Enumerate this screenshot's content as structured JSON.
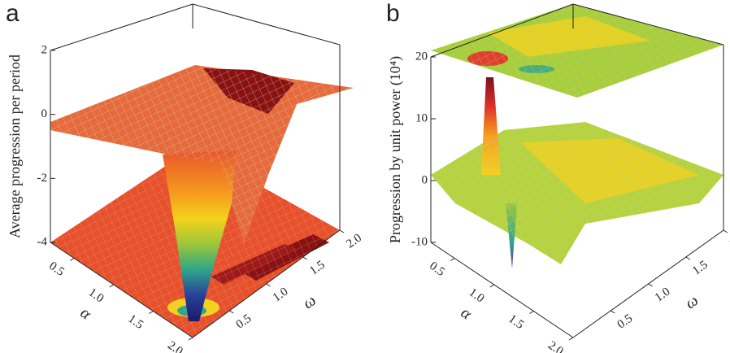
{
  "chart_data": [
    {
      "type": "surface3d",
      "panel_label": "a",
      "zlabel": "Average progression per period",
      "xlabel": "α",
      "ylabel": "ω",
      "zlim": [
        -4,
        2
      ],
      "zticks": [
        2,
        0,
        -2,
        -4
      ],
      "xlim": [
        0.2,
        2
      ],
      "xticks": [
        0.5,
        {
          "value": 1,
          "label": "1.0"
        },
        1.5,
        {
          "value": 2,
          "label": "2.0"
        }
      ],
      "ylim": [
        0,
        2
      ],
      "yticks": [
        0.5,
        {
          "value": 1,
          "label": "1.0"
        },
        1.5,
        {
          "value": 2,
          "label": "2.0"
        }
      ]
    },
    {
      "type": "surface3d",
      "panel_label": "b",
      "zlabel": "Progression by unit power (10⁴)",
      "xlabel": "α",
      "ylabel": "ω",
      "zlim": [
        -10,
        20
      ],
      "zticks": [
        20,
        10,
        0,
        -10
      ],
      "xlim": [
        0.2,
        2
      ],
      "xticks": [
        0.5,
        {
          "value": 1,
          "label": "1.0"
        },
        1.5,
        {
          "value": 2,
          "label": "2.0"
        }
      ],
      "ylim": [
        0,
        2
      ],
      "yticks": [
        0.5,
        {
          "value": 1,
          "label": "1.0"
        },
        1.5,
        {
          "value": 2,
          "label": "2.0"
        }
      ]
    }
  ]
}
